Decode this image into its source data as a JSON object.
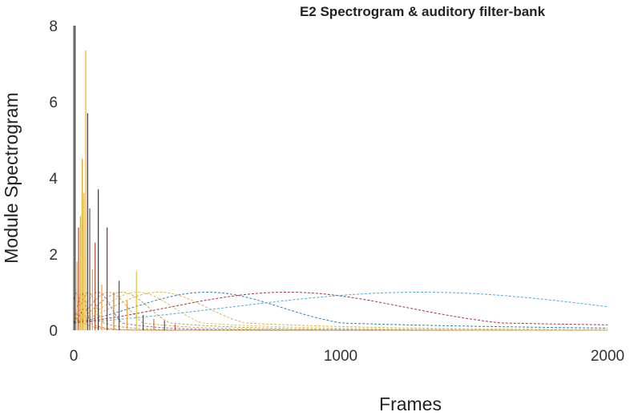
{
  "chart_data": {
    "type": "line",
    "title": "E2 Spectrogram & auditory filter-bank",
    "xlabel": "Frames",
    "ylabel": "Module Spectrogram",
    "xlim": [
      0,
      2000
    ],
    "ylim": [
      0,
      8
    ],
    "x_ticks": [
      "0",
      "1000",
      "2000"
    ],
    "y_ticks": [
      "0",
      "2",
      "4",
      "6",
      "8"
    ],
    "grid": false,
    "legend": "none",
    "filter_bank": [
      {
        "center": 10,
        "peak": 1.0,
        "color": "#d98c2b"
      },
      {
        "center": 30,
        "peak": 1.0,
        "color": "#e07b39"
      },
      {
        "center": 55,
        "peak": 1.0,
        "color": "#c9a227"
      },
      {
        "center": 90,
        "peak": 1.0,
        "color": "#8a6fb5"
      },
      {
        "center": 130,
        "peak": 1.0,
        "color": "#d3a657"
      },
      {
        "center": 180,
        "peak": 1.0,
        "color": "#b8a64a"
      },
      {
        "center": 240,
        "peak": 1.0,
        "color": "#e0c15a"
      },
      {
        "center": 320,
        "peak": 1.0,
        "color": "#d9b24d"
      },
      {
        "center": 500,
        "peak": 1.0,
        "color": "#2a7fb8"
      },
      {
        "center": 800,
        "peak": 1.0,
        "color": "#a2314b"
      },
      {
        "center": 1300,
        "peak": 1.0,
        "color": "#4aaad8"
      }
    ],
    "spectrogram_spikes": [
      {
        "x": 5,
        "y": 8.0,
        "color": "#333333"
      },
      {
        "x": 12,
        "y": 1.8,
        "color": "#e8a040"
      },
      {
        "x": 18,
        "y": 2.7,
        "color": "#d04020"
      },
      {
        "x": 25,
        "y": 3.0,
        "color": "#e8a040"
      },
      {
        "x": 32,
        "y": 4.5,
        "color": "#c9a227"
      },
      {
        "x": 38,
        "y": 3.6,
        "color": "#f0b040"
      },
      {
        "x": 45,
        "y": 7.35,
        "color": "#f0b030"
      },
      {
        "x": 52,
        "y": 5.7,
        "color": "#333366"
      },
      {
        "x": 60,
        "y": 3.2,
        "color": "#555555"
      },
      {
        "x": 70,
        "y": 1.6,
        "color": "#e8a040"
      },
      {
        "x": 80,
        "y": 2.3,
        "color": "#b05030"
      },
      {
        "x": 92,
        "y": 3.7,
        "color": "#333333"
      },
      {
        "x": 105,
        "y": 1.2,
        "color": "#e8a040"
      },
      {
        "x": 125,
        "y": 2.7,
        "color": "#7a3050"
      },
      {
        "x": 150,
        "y": 1.0,
        "color": "#c08040"
      },
      {
        "x": 170,
        "y": 1.3,
        "color": "#555555"
      },
      {
        "x": 200,
        "y": 0.8,
        "color": "#e8a040"
      },
      {
        "x": 235,
        "y": 1.55,
        "color": "#e0c040"
      },
      {
        "x": 260,
        "y": 0.4,
        "color": "#555555"
      },
      {
        "x": 300,
        "y": 0.3,
        "color": "#e07030"
      },
      {
        "x": 340,
        "y": 0.25,
        "color": "#555555"
      },
      {
        "x": 380,
        "y": 0.15,
        "color": "#d05030"
      }
    ]
  }
}
